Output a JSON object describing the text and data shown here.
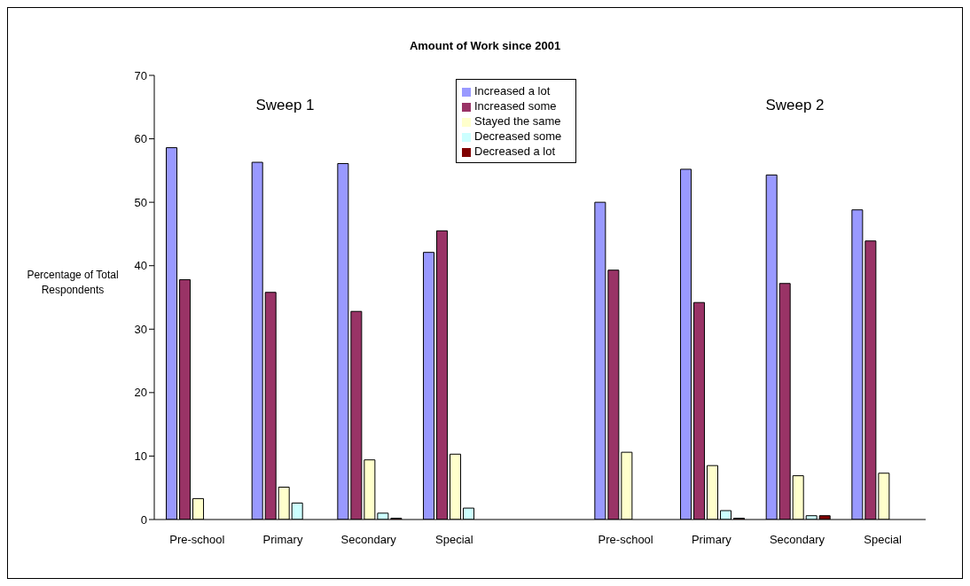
{
  "chart_data": {
    "type": "bar",
    "title": "Amount of Work since 2001",
    "ylabel": "Percentage of Total Respondents",
    "categories": [
      "Pre-school",
      "Primary",
      "Secondary",
      "Special",
      null,
      "Pre-school",
      "Primary",
      "Secondary",
      "Special"
    ],
    "series": [
      {
        "name": "Increased a lot",
        "color": "#9999ff",
        "values": [
          58.6,
          56.3,
          56.1,
          42.1,
          null,
          50.0,
          55.2,
          54.3,
          48.8
        ]
      },
      {
        "name": "Increased some",
        "color": "#993366",
        "values": [
          37.8,
          35.8,
          32.8,
          45.5,
          null,
          39.3,
          34.2,
          37.2,
          43.9
        ]
      },
      {
        "name": "Stayed the same",
        "color": "#ffffcc",
        "values": [
          3.3,
          5.1,
          9.4,
          10.3,
          null,
          10.6,
          8.5,
          6.9,
          7.3
        ]
      },
      {
        "name": "Decreased some",
        "color": "#ccffff",
        "values": [
          0,
          2.6,
          1.0,
          1.8,
          null,
          0,
          1.4,
          0.6,
          0
        ]
      },
      {
        "name": "Decreased a lot",
        "color": "#800000",
        "values": [
          0,
          0,
          0.2,
          0,
          null,
          0,
          0.2,
          0.6,
          0
        ]
      }
    ],
    "ylim": [
      0,
      70
    ],
    "yticks": [
      0,
      10,
      20,
      30,
      40,
      50,
      60,
      70
    ],
    "grid": false,
    "legend": "top",
    "annotations": [
      "Sweep 1",
      "Sweep 2"
    ]
  }
}
